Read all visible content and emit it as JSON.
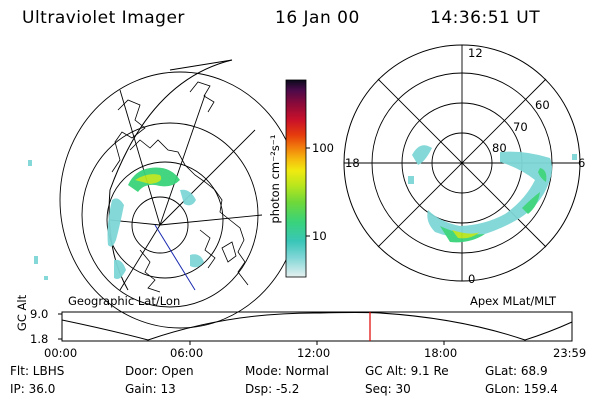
{
  "header": {
    "instrument": "Ultraviolet Imager",
    "date": "16 Jan 00",
    "time": "14:36:51 UT"
  },
  "left_panel": {
    "caption": "Geographic Lat/Lon"
  },
  "right_panel": {
    "caption": "Apex MLat/MLT",
    "mlt_labels": [
      "12",
      "18",
      "6",
      "0"
    ],
    "mlat_labels": [
      "60",
      "70",
      "80"
    ]
  },
  "colorbar": {
    "unit_label": "photon cm⁻²s⁻¹",
    "tick_labels": [
      "100",
      "10"
    ],
    "scale": "log",
    "colors": [
      "#e6f0f0",
      "#7fd6d6",
      "#3ac6b8",
      "#39d37a",
      "#6fd83a",
      "#b6e51e",
      "#f0ea10",
      "#f6b80e",
      "#f07a0c",
      "#e63c0c",
      "#c8102a",
      "#8a0a3a",
      "#4a0a4a",
      "#0a0a1a"
    ]
  },
  "timeline": {
    "ylabel": "GC Alt",
    "y_ticks": [
      "9.0",
      "1.8"
    ],
    "x_ticks": [
      "00:00",
      "06:00",
      "12:00",
      "18:00",
      "23:59"
    ],
    "current_time_color": "#e00000"
  },
  "footer": {
    "row1": [
      "Flt: LBHS",
      "Door: Open",
      "Mode: Normal",
      "GC Alt: 9.1 Re",
      "GLat: 68.9"
    ],
    "row2": [
      "IP: 36.0",
      "Gain: 13",
      "Dsp: -5.2",
      "Seq: 30",
      "GLon: 159.4"
    ]
  }
}
